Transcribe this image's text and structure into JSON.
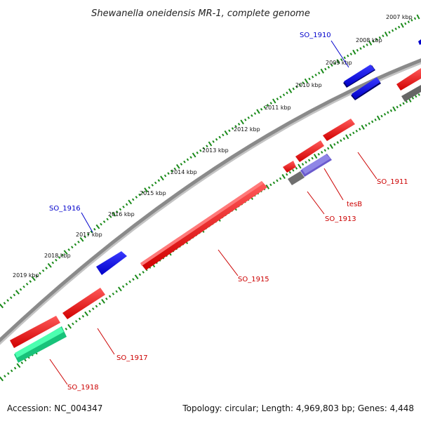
{
  "title": "Shewanella oneidensis MR-1, complete genome",
  "ruler_labels": [
    "2007 kbp",
    "2008 kbp",
    "2009 kbp",
    "2010 kbp",
    "2011 kbp",
    "2012 kbp",
    "2013 kbp",
    "2014 kbp",
    "2015 kbp",
    "2016 kbp",
    "2017 kbp",
    "2018 kbp",
    "2019 kbp"
  ],
  "gene_labels": [
    {
      "name": "SO_1910",
      "strand": "forward",
      "color": "#0000cc"
    },
    {
      "name": "SO_1916",
      "strand": "forward",
      "color": "#0000cc"
    },
    {
      "name": "SO_1911",
      "strand": "reverse",
      "color": "#cc0000"
    },
    {
      "name": "tesB",
      "strand": "reverse",
      "color": "#cc0000"
    },
    {
      "name": "SO_1913",
      "strand": "reverse",
      "color": "#cc0000"
    },
    {
      "name": "SO_1915",
      "strand": "reverse",
      "color": "#cc0000"
    },
    {
      "name": "SO_1917",
      "strand": "reverse",
      "color": "#cc0000"
    },
    {
      "name": "SO_1918",
      "strand": "reverse",
      "color": "#cc0000"
    }
  ],
  "footer": {
    "accession": "Accession: NC_004347",
    "summary": "Topology: circular; Length: 4,969,803 bp; Genes: 4,448"
  },
  "colors": {
    "backbone": "#8a8a8a",
    "tick": "#1a8a1a",
    "forward_gene": "#0000e0",
    "reverse_gene": "#ee0000",
    "highlight_gene": "#6a5acd",
    "pseudo_gene": "#777777",
    "rna_gene": "#22ee99"
  }
}
